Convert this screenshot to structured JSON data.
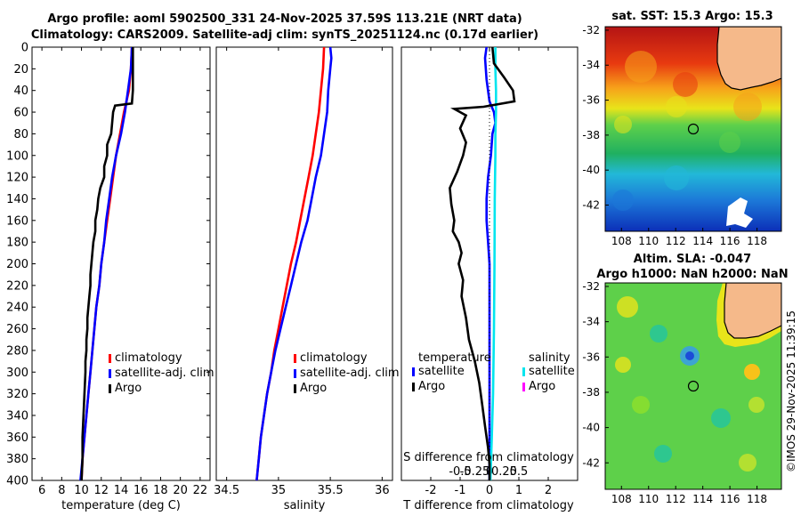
{
  "header": {
    "title_line1": "Argo profile: aoml 5902500_331 24-Nov-2025 37.59S 113.21E (NRT data)",
    "title_line2": "Climatology: CARS2009. Satellite-adj clim: synTS_20251124.nc (0.17d earlier)"
  },
  "colors": {
    "climatology": "#ff0000",
    "satellite": "#0000ff",
    "argo": "#000000",
    "sat_salinity": "#00e5ee",
    "argo_salinity": "#ff00ff"
  },
  "chart_data": [
    {
      "type": "line",
      "name": "temperature-profile",
      "xlabel": "temperature (deg C)",
      "ylabel": "",
      "xlim": [
        5,
        23
      ],
      "ylim": [
        0,
        400
      ],
      "xticks": [
        6,
        8,
        10,
        12,
        14,
        16,
        18,
        20,
        22
      ],
      "yticks": [
        0,
        20,
        40,
        60,
        80,
        100,
        120,
        140,
        160,
        180,
        200,
        220,
        240,
        260,
        280,
        300,
        320,
        340,
        360,
        380,
        400
      ],
      "legend": [
        "climatology",
        "satellite-adj. clim",
        "Argo"
      ],
      "series": [
        {
          "name": "climatology",
          "color": "#ff0000",
          "points": [
            [
              15.1,
              0
            ],
            [
              15.0,
              20
            ],
            [
              14.8,
              40
            ],
            [
              14.3,
              60
            ],
            [
              13.9,
              80
            ],
            [
              13.5,
              100
            ],
            [
              13.2,
              120
            ],
            [
              12.9,
              140
            ],
            [
              12.6,
              160
            ],
            [
              12.3,
              180
            ],
            [
              12.0,
              200
            ],
            [
              11.8,
              220
            ],
            [
              11.5,
              240
            ],
            [
              11.3,
              260
            ],
            [
              11.1,
              280
            ],
            [
              10.9,
              300
            ],
            [
              10.7,
              320
            ],
            [
              10.5,
              340
            ],
            [
              10.3,
              360
            ],
            [
              10.1,
              380
            ],
            [
              10.0,
              400
            ]
          ]
        },
        {
          "name": "satellite-adj. clim",
          "color": "#0000ff",
          "points": [
            [
              15.1,
              0
            ],
            [
              15.0,
              20
            ],
            [
              14.7,
              40
            ],
            [
              14.4,
              60
            ],
            [
              14.0,
              80
            ],
            [
              13.5,
              100
            ],
            [
              13.1,
              120
            ],
            [
              12.8,
              140
            ],
            [
              12.5,
              160
            ],
            [
              12.3,
              180
            ],
            [
              12.0,
              200
            ],
            [
              11.8,
              220
            ],
            [
              11.5,
              240
            ],
            [
              11.3,
              260
            ],
            [
              11.1,
              280
            ],
            [
              10.9,
              300
            ],
            [
              10.7,
              320
            ],
            [
              10.5,
              340
            ],
            [
              10.3,
              360
            ],
            [
              10.1,
              380
            ],
            [
              9.9,
              400
            ]
          ]
        },
        {
          "name": "Argo",
          "color": "#000000",
          "points": [
            [
              15.2,
              0
            ],
            [
              15.2,
              20
            ],
            [
              15.2,
              40
            ],
            [
              15.1,
              52
            ],
            [
              13.4,
              54
            ],
            [
              13.2,
              60
            ],
            [
              13.1,
              70
            ],
            [
              13.0,
              80
            ],
            [
              12.6,
              90
            ],
            [
              12.6,
              100
            ],
            [
              12.3,
              110
            ],
            [
              12.3,
              120
            ],
            [
              11.9,
              130
            ],
            [
              11.7,
              140
            ],
            [
              11.6,
              150
            ],
            [
              11.4,
              160
            ],
            [
              11.4,
              170
            ],
            [
              11.2,
              180
            ],
            [
              11.1,
              190
            ],
            [
              11.0,
              200
            ],
            [
              10.9,
              210
            ],
            [
              10.9,
              220
            ],
            [
              10.8,
              230
            ],
            [
              10.7,
              240
            ],
            [
              10.6,
              250
            ],
            [
              10.6,
              260
            ],
            [
              10.5,
              270
            ],
            [
              10.5,
              280
            ],
            [
              10.4,
              290
            ],
            [
              10.4,
              300
            ],
            [
              10.3,
              320
            ],
            [
              10.2,
              340
            ],
            [
              10.1,
              360
            ],
            [
              10.1,
              380
            ],
            [
              10.0,
              400
            ]
          ]
        }
      ]
    },
    {
      "type": "line",
      "name": "salinity-profile",
      "xlabel": "salinity",
      "xlim": [
        34.4,
        36.1
      ],
      "ylim": [
        0,
        400
      ],
      "xticks": [
        34.5,
        35,
        35.5,
        36
      ],
      "xticklabels": [
        "34.5",
        "35",
        "35.5",
        "36"
      ],
      "legend": [
        "climatology",
        "satellite-adj. clim",
        "Argo"
      ],
      "series": [
        {
          "name": "climatology",
          "color": "#ff0000",
          "points": [
            [
              35.44,
              0
            ],
            [
              35.43,
              20
            ],
            [
              35.41,
              40
            ],
            [
              35.39,
              60
            ],
            [
              35.36,
              80
            ],
            [
              35.33,
              100
            ],
            [
              35.29,
              120
            ],
            [
              35.25,
              140
            ],
            [
              35.21,
              160
            ],
            [
              35.17,
              180
            ],
            [
              35.12,
              200
            ],
            [
              35.08,
              220
            ],
            [
              35.04,
              240
            ],
            [
              35.0,
              260
            ],
            [
              34.96,
              280
            ],
            [
              34.93,
              300
            ],
            [
              34.89,
              320
            ],
            [
              34.86,
              340
            ],
            [
              34.83,
              360
            ],
            [
              34.81,
              380
            ],
            [
              34.79,
              400
            ]
          ]
        },
        {
          "name": "satellite-adj. clim",
          "color": "#0000ff",
          "points": [
            [
              35.5,
              0
            ],
            [
              35.51,
              10
            ],
            [
              35.5,
              20
            ],
            [
              35.48,
              40
            ],
            [
              35.47,
              60
            ],
            [
              35.44,
              80
            ],
            [
              35.41,
              100
            ],
            [
              35.36,
              120
            ],
            [
              35.32,
              140
            ],
            [
              35.28,
              160
            ],
            [
              35.22,
              180
            ],
            [
              35.17,
              200
            ],
            [
              35.12,
              220
            ],
            [
              35.07,
              240
            ],
            [
              35.02,
              260
            ],
            [
              34.97,
              280
            ],
            [
              34.93,
              300
            ],
            [
              34.89,
              320
            ],
            [
              34.86,
              340
            ],
            [
              34.83,
              360
            ],
            [
              34.81,
              380
            ],
            [
              34.79,
              400
            ]
          ]
        },
        {
          "name": "Argo",
          "color": "#000000",
          "points": []
        }
      ]
    },
    {
      "type": "line",
      "name": "difference-profile",
      "xlabel": "T difference from climatology",
      "top_axis_label": "S difference from climatology",
      "xlim": [
        -3,
        3
      ],
      "ylim": [
        0,
        400
      ],
      "xticks": [
        -2,
        -1,
        0,
        1,
        2
      ],
      "xticklabels": [
        "-2",
        "-1",
        "0",
        "1",
        "2"
      ],
      "top_ticks": [
        -0.5,
        -0.25,
        0,
        0.25,
        0.5
      ],
      "top_ticklabels": [
        "-0.5",
        "-0.25",
        "0",
        "0.25",
        "0.5"
      ],
      "legend_temperature": {
        "title": "temperature",
        "items": [
          "satellite",
          "Argo"
        ]
      },
      "legend_salinity": {
        "title": "salinity",
        "items": [
          "satellite",
          "Argo"
        ]
      },
      "series": [
        {
          "name": "T satellite",
          "color": "#0000ff",
          "points": [
            [
              -0.1,
              0
            ],
            [
              -0.15,
              10
            ],
            [
              -0.1,
              30
            ],
            [
              0.0,
              50
            ],
            [
              0.15,
              60
            ],
            [
              0.2,
              70
            ],
            [
              0.1,
              80
            ],
            [
              0.05,
              100
            ],
            [
              -0.05,
              120
            ],
            [
              -0.1,
              140
            ],
            [
              -0.1,
              160
            ],
            [
              -0.05,
              180
            ],
            [
              0.0,
              200
            ],
            [
              0.0,
              260
            ],
            [
              0.0,
              400
            ]
          ]
        },
        {
          "name": "S satellite",
          "color": "#00e5ee",
          "points": [
            [
              0.2,
              0
            ],
            [
              0.2,
              20
            ],
            [
              0.22,
              40
            ],
            [
              0.22,
              60
            ],
            [
              0.2,
              80
            ],
            [
              0.2,
              100
            ],
            [
              0.18,
              140
            ],
            [
              0.17,
              200
            ],
            [
              0.15,
              260
            ],
            [
              0.12,
              320
            ],
            [
              0.08,
              360
            ],
            [
              0.03,
              400
            ]
          ]
        },
        {
          "name": "T Argo",
          "color": "#000000",
          "points": [
            [
              0.1,
              0
            ],
            [
              0.15,
              15
            ],
            [
              0.5,
              28
            ],
            [
              0.8,
              40
            ],
            [
              0.85,
              50
            ],
            [
              -0.2,
              55
            ],
            [
              -1.2,
              57
            ],
            [
              -0.8,
              63
            ],
            [
              -1.0,
              75
            ],
            [
              -0.8,
              88
            ],
            [
              -0.9,
              100
            ],
            [
              -1.1,
              115
            ],
            [
              -1.35,
              130
            ],
            [
              -1.3,
              145
            ],
            [
              -1.2,
              160
            ],
            [
              -1.25,
              170
            ],
            [
              -1.05,
              180
            ],
            [
              -0.95,
              190
            ],
            [
              -1.05,
              200
            ],
            [
              -0.9,
              215
            ],
            [
              -0.95,
              230
            ],
            [
              -0.8,
              250
            ],
            [
              -0.7,
              270
            ],
            [
              -0.5,
              290
            ],
            [
              -0.35,
              310
            ],
            [
              -0.25,
              330
            ],
            [
              -0.15,
              350
            ],
            [
              -0.05,
              370
            ],
            [
              0.0,
              385
            ],
            [
              0.0,
              400
            ]
          ]
        },
        {
          "name": "Argo zero ref",
          "color": "#000000",
          "style": "dotted",
          "points": [
            [
              0,
              0
            ],
            [
              0,
              400
            ]
          ]
        }
      ]
    },
    {
      "type": "heatmap",
      "name": "sst-map",
      "title": "sat. SST: 15.3 Argo: 15.3",
      "xlim": [
        106.8,
        119.8
      ],
      "ylim": [
        -43.5,
        -31.8
      ],
      "xticks": [
        108,
        110,
        112,
        114,
        116,
        118
      ],
      "yticks": [
        -32,
        -34,
        -36,
        -38,
        -40,
        -42
      ],
      "marker": {
        "lon": 113.21,
        "lat": -37.59
      }
    },
    {
      "type": "heatmap",
      "name": "sla-map",
      "title": "Altim. SLA: -0.047",
      "subtitle": "Argo h1000: NaN h2000: NaN",
      "xlim": [
        106.8,
        119.8
      ],
      "ylim": [
        -43.5,
        -31.8
      ],
      "xticks": [
        108,
        110,
        112,
        114,
        116,
        118
      ],
      "yticks": [
        -32,
        -34,
        -36,
        -38,
        -40,
        -42
      ],
      "marker": {
        "lon": 113.21,
        "lat": -37.59
      }
    }
  ],
  "credit": "©IMOS 29-Nov-2025 11:39:15"
}
